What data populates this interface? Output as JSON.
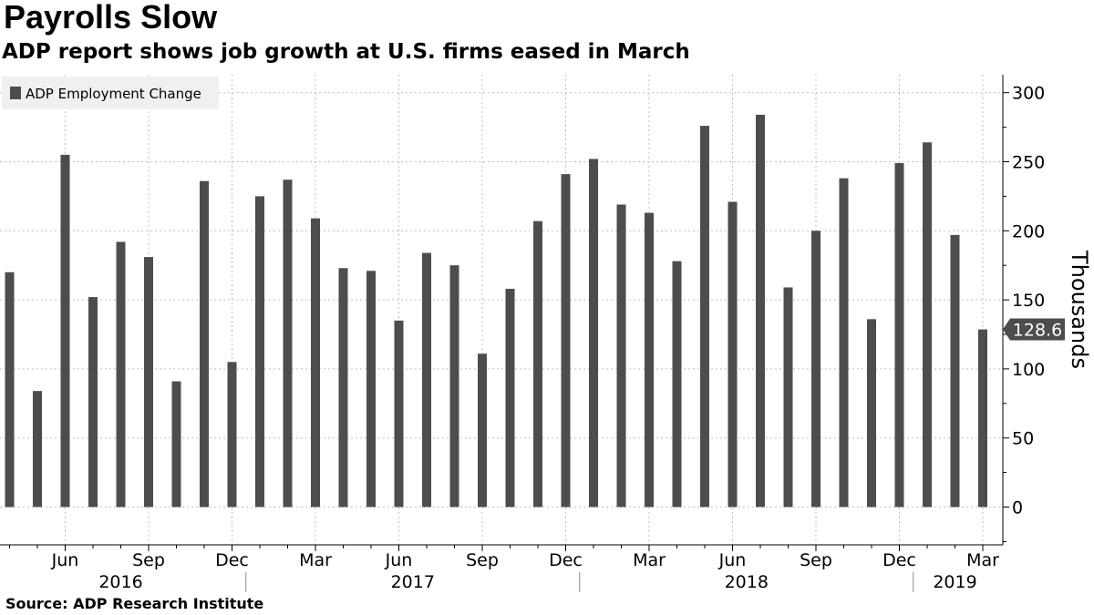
{
  "title": "Payrolls Slow",
  "subtitle": "ADP report shows job growth at U.S. firms eased in March",
  "source": "Source: ADP Research Institute",
  "colors": {
    "bar": "#4d4d4d",
    "grid": "#bfbfbf",
    "legend_bg": "#f0f0f0",
    "tag_bg": "#4d4d4d",
    "tag_text": "#ffffff"
  },
  "chart_data": {
    "type": "bar",
    "series": [
      {
        "name": "ADP Employment Change",
        "values": [
          170,
          84,
          255,
          152,
          192,
          181,
          91,
          236,
          105,
          225,
          237,
          209,
          173,
          171,
          135,
          184,
          175,
          111,
          158,
          207,
          241,
          252,
          219,
          213,
          178,
          276,
          221,
          284,
          159,
          200,
          238,
          136,
          249,
          264,
          197,
          128.6
        ]
      }
    ],
    "x_month_labels": [
      "",
      "",
      "Jun",
      "",
      "",
      "Sep",
      "",
      "",
      "Dec",
      "",
      "",
      "Mar",
      "",
      "",
      "Jun",
      "",
      "",
      "Sep",
      "",
      "",
      "Dec",
      "",
      "",
      "Mar",
      "",
      "",
      "Jun",
      "",
      "",
      "Sep",
      "",
      "",
      "Dec",
      "",
      "",
      "Mar"
    ],
    "year_labels": [
      {
        "label": "2016",
        "start": 0,
        "end": 8
      },
      {
        "label": "2017",
        "start": 9,
        "end": 20
      },
      {
        "label": "2018",
        "start": 21,
        "end": 32
      },
      {
        "label": "2019",
        "start": 33,
        "end": 35
      }
    ],
    "ylabel": "Thousands",
    "ylim": [
      -25,
      310
    ],
    "yticks": [
      0,
      50,
      100,
      150,
      200,
      250,
      300
    ],
    "last_value_tag": "128.6",
    "legend_position": "top-left",
    "grid": true
  }
}
